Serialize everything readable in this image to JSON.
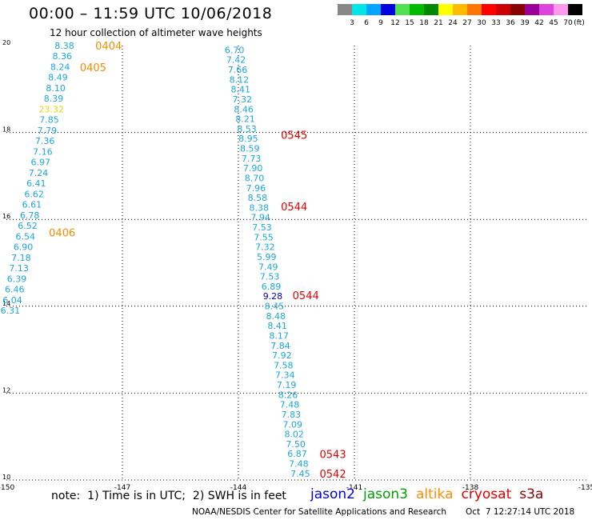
{
  "header": {
    "title": "00:00 – 11:59 UTC 10/06/2018",
    "subtitle": "12 hour collection of altimeter wave heights"
  },
  "color_scale": {
    "unit": "(ft)",
    "swatches": [
      {
        "label": "3",
        "color": "#888888"
      },
      {
        "label": "6",
        "color": "#00e5e5"
      },
      {
        "label": "9",
        "color": "#00a5ff"
      },
      {
        "label": "12",
        "color": "#0000e0"
      },
      {
        "label": "15",
        "color": "#50e050"
      },
      {
        "label": "18",
        "color": "#00bb00"
      },
      {
        "label": "21",
        "color": "#008800"
      },
      {
        "label": "24",
        "color": "#ffff00"
      },
      {
        "label": "27",
        "color": "#ffbb00"
      },
      {
        "label": "30",
        "color": "#ff7700"
      },
      {
        "label": "33",
        "color": "#ff0000"
      },
      {
        "label": "36",
        "color": "#cc0000"
      },
      {
        "label": "39",
        "color": "#880000"
      },
      {
        "label": "42",
        "color": "#990099"
      },
      {
        "label": "45",
        "color": "#dd44dd"
      },
      {
        "label": "70",
        "color": "#ff99ee"
      },
      {
        "label": "",
        "color": "#000000"
      }
    ]
  },
  "map": {
    "x_ticks": [
      "-150",
      "-147",
      "-144",
      "-141",
      "-138",
      "-135"
    ],
    "y_ticks": [
      "10",
      "12",
      "14",
      "16",
      "18",
      "20"
    ],
    "x_range": [
      -150,
      -135
    ],
    "y_range": [
      10,
      20
    ]
  },
  "tracks": [
    {
      "name": "west-track",
      "lon_start": -148.5,
      "lat_start": 20.0,
      "lon_end": -149.9,
      "lat_end": 13.9,
      "values": [
        {
          "v": "8.38",
          "c": "#1aa6e0"
        },
        {
          "v": "8.36",
          "c": "#1aa6e0"
        },
        {
          "v": "8.24",
          "c": "#1aa6e0"
        },
        {
          "v": "8.49",
          "c": "#1aa6e0"
        },
        {
          "v": "8.10",
          "c": "#1aa6e0"
        },
        {
          "v": "8.39",
          "c": "#1aa6e0"
        },
        {
          "v": "23.32",
          "c": "#f0d000"
        },
        {
          "v": "7.85",
          "c": "#1aa6e0"
        },
        {
          "v": "7.79",
          "c": "#1aa6e0"
        },
        {
          "v": "7.36",
          "c": "#1aa6e0"
        },
        {
          "v": "7.16",
          "c": "#1aa6e0"
        },
        {
          "v": "6.97",
          "c": "#1aa6e0"
        },
        {
          "v": "7.24",
          "c": "#1aa6e0"
        },
        {
          "v": "6.41",
          "c": "#1aa6e0"
        },
        {
          "v": "6.62",
          "c": "#1aa6e0"
        },
        {
          "v": "6.61",
          "c": "#1aa6e0"
        },
        {
          "v": "6.78",
          "c": "#1aa6e0"
        },
        {
          "v": "6.52",
          "c": "#1aa6e0"
        },
        {
          "v": "6.54",
          "c": "#1aa6e0"
        },
        {
          "v": "6.90",
          "c": "#1aa6e0"
        },
        {
          "v": "7.18",
          "c": "#1aa6e0"
        },
        {
          "v": "7.13",
          "c": "#1aa6e0"
        },
        {
          "v": "6.39",
          "c": "#1aa6e0"
        },
        {
          "v": "6.46",
          "c": "#1aa6e0"
        },
        {
          "v": "6.04",
          "c": "#1aa6e0"
        },
        {
          "v": "6.31",
          "c": "#1aa6e0"
        }
      ],
      "times": [
        {
          "t": "0404",
          "lon": -147.7,
          "lat": 20.0,
          "c": "#f08c00"
        },
        {
          "t": "0405",
          "lon": -148.1,
          "lat": 19.5,
          "c": "#f08c00"
        },
        {
          "t": "0406",
          "lon": -148.9,
          "lat": 15.7,
          "c": "#f08c00"
        }
      ]
    },
    {
      "name": "east-track",
      "lon_start": -144.1,
      "lat_start": 19.9,
      "lon_end": -142.4,
      "lat_end": 10.15,
      "values": [
        {
          "v": "6.70",
          "c": "#1aa6e0"
        },
        {
          "v": "7.42",
          "c": "#1aa6e0"
        },
        {
          "v": "7.66",
          "c": "#1aa6e0"
        },
        {
          "v": "8.12",
          "c": "#1aa6e0"
        },
        {
          "v": "8.41",
          "c": "#1aa6e0"
        },
        {
          "v": "7.32",
          "c": "#1aa6e0"
        },
        {
          "v": "8.46",
          "c": "#1aa6e0"
        },
        {
          "v": "8.21",
          "c": "#1aa6e0"
        },
        {
          "v": "8.53",
          "c": "#1aa6e0"
        },
        {
          "v": "8.95",
          "c": "#1aa6e0"
        },
        {
          "v": "8.59",
          "c": "#1aa6e0"
        },
        {
          "v": "7.73",
          "c": "#1aa6e0"
        },
        {
          "v": "7.90",
          "c": "#1aa6e0"
        },
        {
          "v": "8.70",
          "c": "#1aa6e0"
        },
        {
          "v": "7.96",
          "c": "#1aa6e0"
        },
        {
          "v": "8.58",
          "c": "#1aa6e0"
        },
        {
          "v": "8.38",
          "c": "#1aa6e0"
        },
        {
          "v": "7.94",
          "c": "#1aa6e0"
        },
        {
          "v": "7.53",
          "c": "#1aa6e0"
        },
        {
          "v": "7.55",
          "c": "#1aa6e0"
        },
        {
          "v": "7.32",
          "c": "#1aa6e0"
        },
        {
          "v": "5.99",
          "c": "#1aa6e0"
        },
        {
          "v": "7.49",
          "c": "#1aa6e0"
        },
        {
          "v": "7.53",
          "c": "#1aa6e0"
        },
        {
          "v": "6.89",
          "c": "#1aa6e0"
        },
        {
          "v": "9.28",
          "c": "#0000c8"
        },
        {
          "v": "8.45",
          "c": "#1aa6e0"
        },
        {
          "v": "8.48",
          "c": "#1aa6e0"
        },
        {
          "v": "8.41",
          "c": "#1aa6e0"
        },
        {
          "v": "8.17",
          "c": "#1aa6e0"
        },
        {
          "v": "7.84",
          "c": "#1aa6e0"
        },
        {
          "v": "7.92",
          "c": "#1aa6e0"
        },
        {
          "v": "7.58",
          "c": "#1aa6e0"
        },
        {
          "v": "7.34",
          "c": "#1aa6e0"
        },
        {
          "v": "7.19",
          "c": "#1aa6e0"
        },
        {
          "v": "8.26",
          "c": "#1aa6e0"
        },
        {
          "v": "7.48",
          "c": "#1aa6e0"
        },
        {
          "v": "7.83",
          "c": "#1aa6e0"
        },
        {
          "v": "7.09",
          "c": "#1aa6e0"
        },
        {
          "v": "8.02",
          "c": "#1aa6e0"
        },
        {
          "v": "7.50",
          "c": "#1aa6e0"
        },
        {
          "v": "6.87",
          "c": "#1aa6e0"
        },
        {
          "v": "7.48",
          "c": "#1aa6e0"
        },
        {
          "v": "7.45",
          "c": "#1aa6e0"
        }
      ],
      "times": [
        {
          "t": "0545",
          "lon": -142.9,
          "lat": 17.95,
          "c": "#e00000"
        },
        {
          "t": "0544",
          "lon": -142.9,
          "lat": 16.3,
          "c": "#e00000"
        },
        {
          "t": "0544",
          "lon": -142.6,
          "lat": 14.25,
          "c": "#e00000"
        },
        {
          "t": "0543",
          "lon": -141.9,
          "lat": 10.6,
          "c": "#e00000"
        },
        {
          "t": "0542",
          "lon": -141.9,
          "lat": 10.15,
          "c": "#e00000"
        }
      ]
    }
  ],
  "footer": {
    "note": "note:  1) Time is in UTC;  2) SWH is in feet",
    "legend": [
      {
        "label": "jason2",
        "color": "#0000e0"
      },
      {
        "label": "jason3",
        "color": "#00a000"
      },
      {
        "label": "altika",
        "color": "#ff8c00"
      },
      {
        "label": "cryosat",
        "color": "#e00000"
      },
      {
        "label": "s3a",
        "color": "#8b0000"
      }
    ],
    "credit": "NOAA/NESDIS Center for Satellite Applications and Research",
    "timestamp": "Oct  7 12:27:14 UTC 2018"
  }
}
